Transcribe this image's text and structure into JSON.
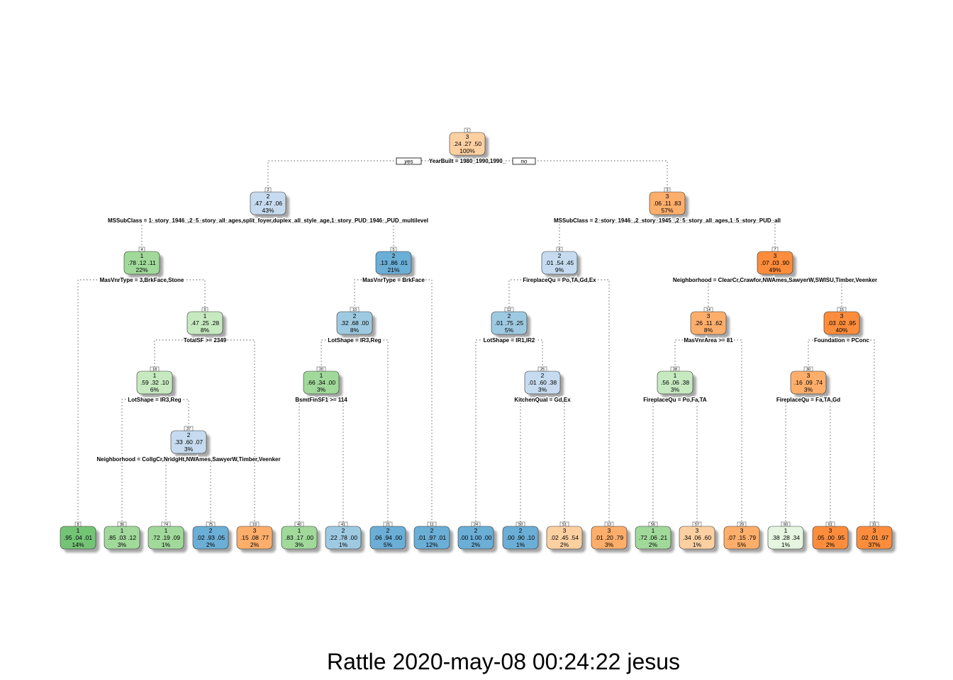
{
  "branch_labels": {
    "yes": "yes",
    "no": "no"
  },
  "caption": "Rattle 2020-may-08 00:24:22 jesus",
  "class_colors": {
    "1": [
      "#e5f5e0",
      "#c7e9c0",
      "#a1d99b",
      "#74c476"
    ],
    "2": [
      "#deebf7",
      "#c6dbef",
      "#9ecae1",
      "#6baed6"
    ],
    "3": [
      "#fee6ce",
      "#fdd0a2",
      "#fdae6b",
      "#fd8d3c"
    ]
  },
  "nodes": [
    {
      "id": "1",
      "cls": "3",
      "probs": ".24 .27 .50",
      "pct": "100%",
      "split": "YearBuilt = 1980_1990,1990_"
    },
    {
      "id": "2",
      "cls": "2",
      "probs": ".47 .47 .06",
      "pct": "43%",
      "split": "MSSubClass = 1_story_1946_,2_5_story_all_ages,split_foyer,duplex_all_style_age,1_story_PUD_1946_,PUD_multilevel"
    },
    {
      "id": "3",
      "cls": "3",
      "probs": ".06 .11 .83",
      "pct": "57%",
      "split": "MSSubClass = 2_story_1946_,2_story_1945_,2_5_story_all_ages,1_5_story_PUD_all"
    },
    {
      "id": "4",
      "cls": "1",
      "probs": ".78 .12 .11",
      "pct": "22%",
      "split": "MasVnrType = 3,BrkFace,Stone"
    },
    {
      "id": "5",
      "cls": "2",
      "probs": ".13 .86 .01",
      "pct": "21%",
      "split": "MasVnrType = BrkFace"
    },
    {
      "id": "6",
      "cls": "2",
      "probs": ".01 .54 .45",
      "pct": "9%",
      "split": "FireplaceQu = Po,TA,Gd,Ex"
    },
    {
      "id": "7",
      "cls": "3",
      "probs": ".07 .03 .90",
      "pct": "49%",
      "split": "Neighborhood = ClearCr,Crawfor,NWAmes,SawyerW,SWISU,Timber,Veenker"
    },
    {
      "id": "9",
      "cls": "1",
      "probs": ".47 .25 .28",
      "pct": "8%",
      "split": "TotalSF >= 2349"
    },
    {
      "id": "10",
      "cls": "2",
      "probs": ".32 .68 .00",
      "pct": "8%",
      "split": "LotShape = IR3,Reg"
    },
    {
      "id": "12",
      "cls": "2",
      "probs": ".01 .75 .25",
      "pct": "5%",
      "split": "LotShape = IR1,IR2"
    },
    {
      "id": "14",
      "cls": "3",
      "probs": ".26 .11 .62",
      "pct": "8%",
      "split": "MasVnrArea >= 81"
    },
    {
      "id": "15",
      "cls": "3",
      "probs": ".03 .02 .95",
      "pct": "40%",
      "split": "Foundation = PConc"
    },
    {
      "id": "18",
      "cls": "1",
      "probs": ".59 .32 .10",
      "pct": "6%",
      "split": "LotShape = IR3,Reg"
    },
    {
      "id": "20",
      "cls": "1",
      "probs": ".66 .34 .00",
      "pct": "3%",
      "split": "BsmtFinSF1 >= 114"
    },
    {
      "id": "25",
      "cls": "2",
      "probs": ".01 .60 .38",
      "pct": "3%",
      "split": "KitchenQual = Gd,Ex"
    },
    {
      "id": "28",
      "cls": "1",
      "probs": ".56 .06 .38",
      "pct": "3%",
      "split": "FireplaceQu = Po,Fa,TA"
    },
    {
      "id": "30",
      "cls": "3",
      "probs": ".16 .09 .74",
      "pct": "3%",
      "split": "FireplaceQu = Fa,TA,Gd"
    },
    {
      "id": "37",
      "cls": "2",
      "probs": ".33 .60 .07",
      "pct": "3%",
      "split": "Neighborhood = CollgCr,NridgHt,NWAmes,SawyerW,Timber,Veenker"
    },
    {
      "id": "8",
      "cls": "1",
      "probs": ".95 .04 .01",
      "pct": "14%",
      "split": ""
    },
    {
      "id": "36",
      "cls": "1",
      "probs": ".85 .03 .12",
      "pct": "3%",
      "split": ""
    },
    {
      "id": "74",
      "cls": "1",
      "probs": ".72 .19 .09",
      "pct": "1%",
      "split": ""
    },
    {
      "id": "75",
      "cls": "2",
      "probs": ".02 .93 .05",
      "pct": "2%",
      "split": ""
    },
    {
      "id": "19",
      "cls": "3",
      "probs": ".15 .08 .77",
      "pct": "2%",
      "split": ""
    },
    {
      "id": "40",
      "cls": "1",
      "probs": ".83 .17 .00",
      "pct": "3%",
      "split": ""
    },
    {
      "id": "41",
      "cls": "2",
      "probs": ".22 .78 .00",
      "pct": "1%",
      "split": ""
    },
    {
      "id": "21",
      "cls": "2",
      "probs": ".06 .94 .00",
      "pct": "5%",
      "split": ""
    },
    {
      "id": "11",
      "cls": "2",
      "probs": ".01 .97 .01",
      "pct": "12%",
      "split": ""
    },
    {
      "id": "24",
      "cls": "2",
      "probs": ".00 1.00 .00",
      "pct": "2%",
      "split": ""
    },
    {
      "id": "50",
      "cls": "2",
      "probs": ".00 .90 .10",
      "pct": "1%",
      "split": ""
    },
    {
      "id": "51",
      "cls": "3",
      "probs": ".02 .45 .54",
      "pct": "2%",
      "split": ""
    },
    {
      "id": "13",
      "cls": "3",
      "probs": ".01 .20 .79",
      "pct": "3%",
      "split": ""
    },
    {
      "id": "56",
      "cls": "1",
      "probs": ".72 .06 .21",
      "pct": "2%",
      "split": ""
    },
    {
      "id": "57",
      "cls": "3",
      "probs": ".34 .06 .60",
      "pct": "1%",
      "split": ""
    },
    {
      "id": "29",
      "cls": "3",
      "probs": ".07 .15 .79",
      "pct": "5%",
      "split": ""
    },
    {
      "id": "60",
      "cls": "1",
      "probs": ".38 .28 .34",
      "pct": "1%",
      "split": ""
    },
    {
      "id": "61",
      "cls": "3",
      "probs": ".05 .00 .95",
      "pct": "2%",
      "split": ""
    },
    {
      "id": "31",
      "cls": "3",
      "probs": ".02 .01 .97",
      "pct": "37%",
      "split": ""
    }
  ]
}
